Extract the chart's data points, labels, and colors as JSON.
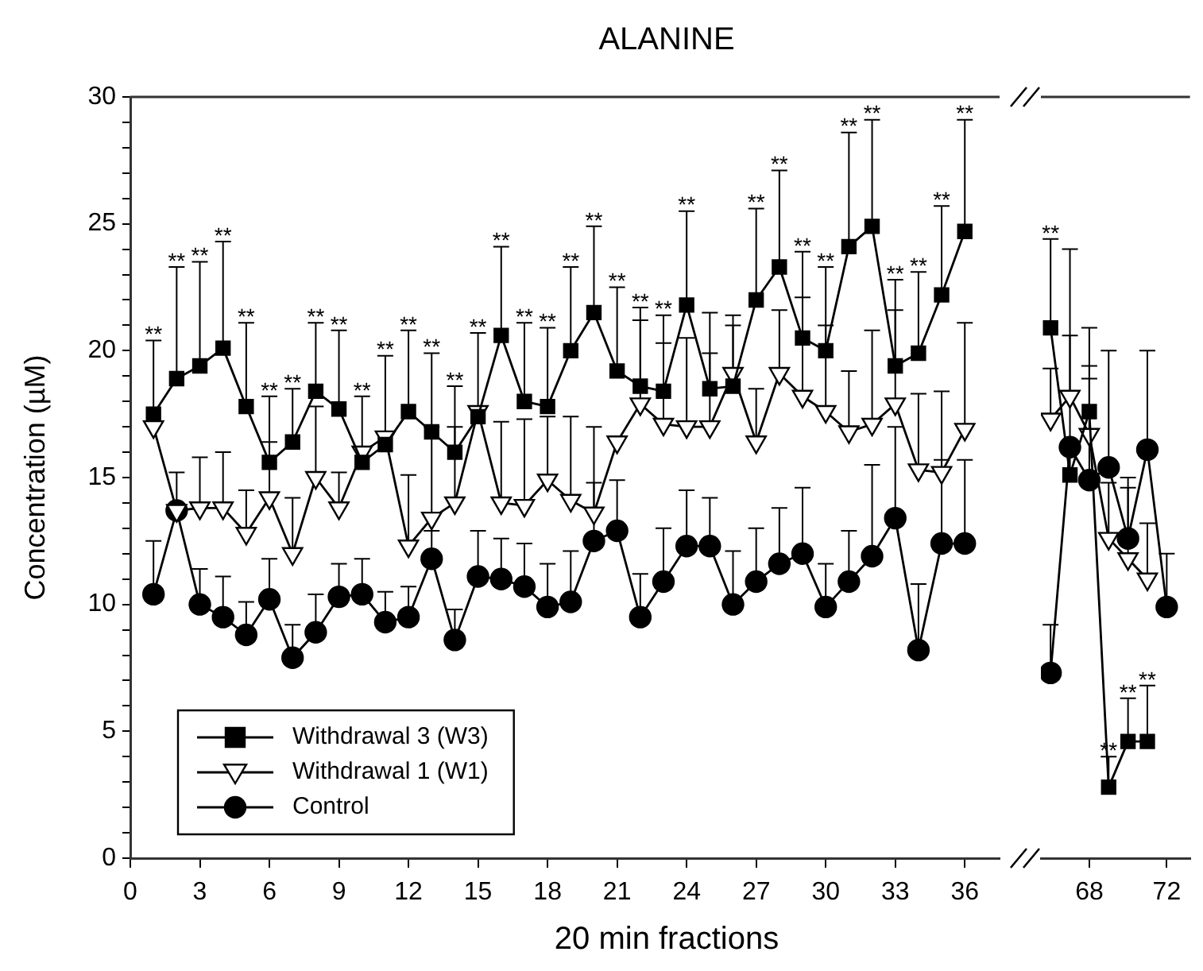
{
  "chart_data": [
    {
      "type": "line",
      "title": "ALANINE",
      "xlabel": "20 min fractions",
      "ylabel": "Concentration (µM)",
      "x": [
        1,
        2,
        3,
        4,
        5,
        6,
        7,
        8,
        9,
        10,
        11,
        12,
        13,
        14,
        15,
        16,
        17,
        18,
        19,
        20,
        21,
        22,
        23,
        24,
        25,
        26,
        27,
        28,
        29,
        30,
        31,
        32,
        33,
        34,
        35,
        36
      ],
      "xlim": [
        0,
        37.5
      ],
      "xticks": [
        0,
        3,
        6,
        9,
        12,
        15,
        18,
        21,
        24,
        27,
        30,
        33,
        36
      ],
      "ylim": [
        0,
        30
      ],
      "yticks": [
        0,
        {
          "value": 1,
          "label": null
        },
        {
          "value": 2,
          "label": null
        },
        {
          "value": 3,
          "label": null
        },
        {
          "value": 4,
          "label": null
        },
        5,
        {
          "value": 6,
          "label": null
        },
        {
          "value": 7,
          "label": null
        },
        {
          "value": 8,
          "label": null
        },
        {
          "value": 9,
          "label": null
        },
        10,
        {
          "value": 11,
          "label": null
        },
        {
          "value": 12,
          "label": null
        },
        {
          "value": 13,
          "label": null
        },
        {
          "value": 14,
          "label": null
        },
        15,
        {
          "value": 16,
          "label": null
        },
        {
          "value": 17,
          "label": null
        },
        {
          "value": 18,
          "label": null
        },
        {
          "value": 19,
          "label": null
        },
        20,
        {
          "value": 21,
          "label": null
        },
        {
          "value": 22,
          "label": null
        },
        {
          "value": 23,
          "label": null
        },
        {
          "value": 24,
          "label": null
        },
        25,
        {
          "value": 26,
          "label": null
        },
        {
          "value": 27,
          "label": null
        },
        {
          "value": 28,
          "label": null
        },
        {
          "value": 29,
          "label": null
        },
        30
      ],
      "legend": "bottom left",
      "series": [
        {
          "name": "Withdrawal 3 (W3)",
          "color": "#000000",
          "marker": "square",
          "values": [
            17.5,
            18.9,
            19.4,
            20.1,
            17.8,
            15.6,
            16.4,
            18.4,
            17.7,
            15.6,
            16.3,
            17.6,
            16.8,
            16.0,
            17.4,
            20.6,
            18.0,
            17.8,
            20.0,
            21.5,
            19.2,
            18.6,
            18.4,
            21.8,
            18.5,
            18.6,
            22.0,
            23.3,
            20.5,
            20.0,
            24.1,
            24.9,
            19.4,
            19.9,
            22.2,
            24.7
          ],
          "errors": [
            [
              17.5,
              20.4
            ],
            [
              18.9,
              23.3
            ],
            [
              19.4,
              23.5
            ],
            [
              20.1,
              24.3
            ],
            [
              17.8,
              21.1
            ],
            [
              15.6,
              18.2
            ],
            [
              16.4,
              18.5
            ],
            [
              18.4,
              21.1
            ],
            [
              17.7,
              20.8
            ],
            [
              15.6,
              18.2
            ],
            [
              16.3,
              19.8
            ],
            [
              17.6,
              20.8
            ],
            [
              16.8,
              19.9
            ],
            [
              16.0,
              18.6
            ],
            [
              17.4,
              20.7
            ],
            [
              20.6,
              24.1
            ],
            [
              18.0,
              21.1
            ],
            [
              17.8,
              20.9
            ],
            [
              20.0,
              23.3
            ],
            [
              21.5,
              24.9
            ],
            [
              19.2,
              22.5
            ],
            [
              18.6,
              21.7
            ],
            [
              18.4,
              21.4
            ],
            [
              21.8,
              25.5
            ],
            [
              18.5,
              21.5
            ],
            [
              18.6,
              21.4
            ],
            [
              22.0,
              25.6
            ],
            [
              23.3,
              27.1
            ],
            [
              20.5,
              23.9
            ],
            [
              20.0,
              23.3
            ],
            [
              24.1,
              28.6
            ],
            [
              24.9,
              29.1
            ],
            [
              19.4,
              22.8
            ],
            [
              19.9,
              23.1
            ],
            [
              22.2,
              25.7
            ],
            [
              24.7,
              29.1
            ]
          ]
        },
        {
          "name": "Withdrawal 1 (W1)",
          "color": "#000000",
          "marker": "triangle",
          "values": [
            17.0,
            13.7,
            13.8,
            13.8,
            12.8,
            14.2,
            12.0,
            15.0,
            13.8,
            16.0,
            16.6,
            12.3,
            13.4,
            14.0,
            17.6,
            14.0,
            13.9,
            14.9,
            14.1,
            13.6,
            16.4,
            17.9,
            17.1,
            17.0,
            17.0,
            19.1,
            16.4,
            19.1,
            18.2,
            17.6,
            16.8,
            17.1,
            17.9,
            15.3,
            15.2,
            16.9
          ],
          "errors": [
            null,
            null,
            [
              13.8,
              15.8
            ],
            [
              13.8,
              16.0
            ],
            [
              12.8,
              14.5
            ],
            [
              14.2,
              16.4
            ],
            [
              12.0,
              14.2
            ],
            [
              15.0,
              17.8
            ],
            [
              13.8,
              15.2
            ],
            null,
            null,
            [
              12.3,
              15.1
            ],
            [
              13.4,
              17.0
            ],
            [
              14.0,
              17.0
            ],
            null,
            [
              14.0,
              17.2
            ],
            [
              13.9,
              17.3
            ],
            [
              14.9,
              17.4
            ],
            [
              14.1,
              17.4
            ],
            [
              13.6,
              17.0
            ],
            null,
            [
              17.9,
              21.2
            ],
            [
              17.1,
              20.3
            ],
            [
              17.0,
              20.5
            ],
            [
              17.0,
              19.9
            ],
            [
              19.1,
              21.0
            ],
            [
              16.4,
              18.5
            ],
            [
              19.1,
              21.6
            ],
            [
              18.2,
              22.1
            ],
            [
              17.6,
              21.0
            ],
            [
              16.8,
              19.2
            ],
            [
              17.1,
              20.8
            ],
            [
              17.9,
              21.6
            ],
            [
              15.3,
              18.3
            ],
            [
              15.2,
              18.4
            ],
            [
              16.9,
              21.1
            ]
          ]
        },
        {
          "name": "Control",
          "color": "#000000",
          "marker": "circle",
          "values": [
            10.4,
            13.7,
            10.0,
            9.5,
            8.8,
            10.2,
            7.9,
            8.9,
            10.3,
            10.4,
            9.3,
            9.5,
            11.8,
            8.6,
            11.1,
            11.0,
            10.7,
            9.9,
            10.1,
            12.5,
            12.9,
            9.5,
            10.9,
            12.3,
            12.3,
            10.0,
            10.9,
            11.6,
            12.0,
            9.9,
            10.9,
            11.9,
            13.4,
            8.2,
            12.4,
            12.4
          ],
          "errors": [
            [
              10.4,
              12.5
            ],
            [
              13.7,
              15.2
            ],
            [
              10.0,
              11.4
            ],
            [
              9.5,
              11.1
            ],
            [
              8.8,
              10.1
            ],
            [
              10.2,
              11.8
            ],
            [
              7.9,
              9.2
            ],
            [
              8.9,
              10.4
            ],
            [
              10.3,
              11.6
            ],
            [
              10.4,
              11.8
            ],
            [
              9.3,
              10.5
            ],
            [
              9.5,
              10.7
            ],
            [
              11.8,
              12.9
            ],
            [
              8.6,
              9.8
            ],
            [
              11.1,
              12.9
            ],
            [
              11.0,
              12.6
            ],
            [
              10.7,
              12.4
            ],
            [
              9.9,
              11.6
            ],
            [
              10.1,
              12.1
            ],
            [
              12.5,
              14.8
            ],
            [
              12.9,
              14.9
            ],
            [
              9.5,
              11.2
            ],
            [
              10.9,
              13.0
            ],
            [
              12.3,
              14.5
            ],
            [
              12.3,
              14.2
            ],
            [
              10.0,
              12.1
            ],
            [
              10.9,
              13.0
            ],
            [
              11.6,
              13.8
            ],
            [
              12.0,
              14.6
            ],
            [
              9.9,
              11.6
            ],
            [
              10.9,
              12.9
            ],
            [
              11.9,
              15.5
            ],
            [
              13.4,
              17.0
            ],
            [
              8.2,
              10.8
            ],
            [
              12.4,
              15.7
            ],
            [
              12.4,
              15.7
            ]
          ]
        }
      ],
      "annotations": [
        {
          "text": "**",
          "x": 1,
          "y": 20.4
        },
        {
          "text": "**",
          "x": 2,
          "y": 23.3
        },
        {
          "text": "**",
          "x": 3,
          "y": 23.5
        },
        {
          "text": "**",
          "x": 4,
          "y": 24.3
        },
        {
          "text": "**",
          "x": 5,
          "y": 21.1
        },
        {
          "text": "**",
          "x": 6,
          "y": 18.2
        },
        {
          "text": "**",
          "x": 7,
          "y": 18.5
        },
        {
          "text": "**",
          "x": 8,
          "y": 21.1
        },
        {
          "text": "**",
          "x": 9,
          "y": 20.8
        },
        {
          "text": "**",
          "x": 10,
          "y": 18.2
        },
        {
          "text": "**",
          "x": 11,
          "y": 19.8
        },
        {
          "text": "**",
          "x": 12,
          "y": 20.8
        },
        {
          "text": "**",
          "x": 13,
          "y": 19.9
        },
        {
          "text": "**",
          "x": 14,
          "y": 18.6
        },
        {
          "text": "**",
          "x": 15,
          "y": 20.7
        },
        {
          "text": "**",
          "x": 16,
          "y": 24.1
        },
        {
          "text": "**",
          "x": 17,
          "y": 21.1
        },
        {
          "text": "**",
          "x": 18,
          "y": 20.9
        },
        {
          "text": "**",
          "x": 19,
          "y": 23.3
        },
        {
          "text": "**",
          "x": 20,
          "y": 24.9
        },
        {
          "text": "**",
          "x": 21,
          "y": 22.5
        },
        {
          "text": "**",
          "x": 22,
          "y": 21.7
        },
        {
          "text": "**",
          "x": 23,
          "y": 21.4
        },
        {
          "text": "**",
          "x": 24,
          "y": 25.5
        },
        {
          "text": "**",
          "x": 27,
          "y": 25.6
        },
        {
          "text": "**",
          "x": 28,
          "y": 27.1
        },
        {
          "text": "**",
          "x": 29,
          "y": 23.9
        },
        {
          "text": "**",
          "x": 30,
          "y": 23.3
        },
        {
          "text": "**",
          "x": 31,
          "y": 28.6
        },
        {
          "text": "**",
          "x": 32,
          "y": 29.1
        },
        {
          "text": "**",
          "x": 33,
          "y": 22.8
        },
        {
          "text": "**",
          "x": 34,
          "y": 23.1
        },
        {
          "text": "**",
          "x": 35,
          "y": 25.7
        },
        {
          "text": "**",
          "x": 36,
          "y": 29.1
        }
      ]
    },
    {
      "type": "line",
      "x": [
        66,
        67,
        68,
        69,
        70,
        71,
        72
      ],
      "xlim": [
        65.5,
        73.2
      ],
      "xticks": [
        68,
        72
      ],
      "ylim": [
        0,
        30
      ],
      "yticks": [
        0,
        5,
        10,
        15,
        20,
        25,
        30
      ],
      "tick_labels": "x",
      "series": [
        {
          "color": "#000000",
          "marker": "square",
          "values": [
            20.9,
            15.1,
            17.6,
            2.8,
            4.6,
            4.6,
            null
          ],
          "errors": [
            [
              20.9,
              24.4
            ],
            [
              15.1,
              24.0
            ],
            [
              17.6,
              20.9
            ],
            [
              2.8,
              4.0
            ],
            [
              4.6,
              6.3
            ],
            [
              4.6,
              6.8
            ],
            null
          ]
        },
        {
          "color": "#000000",
          "marker": "triangle",
          "values": [
            17.3,
            18.2,
            16.7,
            12.6,
            11.8,
            11.0,
            null
          ],
          "errors": [
            [
              17.3,
              19.3
            ],
            [
              18.2,
              20.6
            ],
            [
              16.7,
              19.4
            ],
            [
              12.6,
              14.8
            ],
            [
              11.8,
              14.6
            ],
            [
              11.0,
              13.2
            ],
            null
          ]
        },
        {
          "color": "#000000",
          "marker": "circle",
          "values": [
            7.3,
            16.2,
            14.9,
            15.4,
            12.6,
            16.1,
            9.9
          ],
          "errors": [
            [
              7.3,
              9.2
            ],
            null,
            [
              14.9,
              18.9
            ],
            [
              15.4,
              20.0
            ],
            [
              12.6,
              15.0
            ],
            [
              16.1,
              20.0
            ],
            [
              9.9,
              12.0
            ]
          ]
        }
      ],
      "annotations": [
        {
          "text": "**",
          "x": 66,
          "y": 24.4
        },
        {
          "text": "**",
          "x": 69,
          "y": 4.0
        },
        {
          "text": "**",
          "x": 70,
          "y": 6.3
        },
        {
          "text": "**",
          "x": 71,
          "y": 6.8
        }
      ]
    }
  ]
}
